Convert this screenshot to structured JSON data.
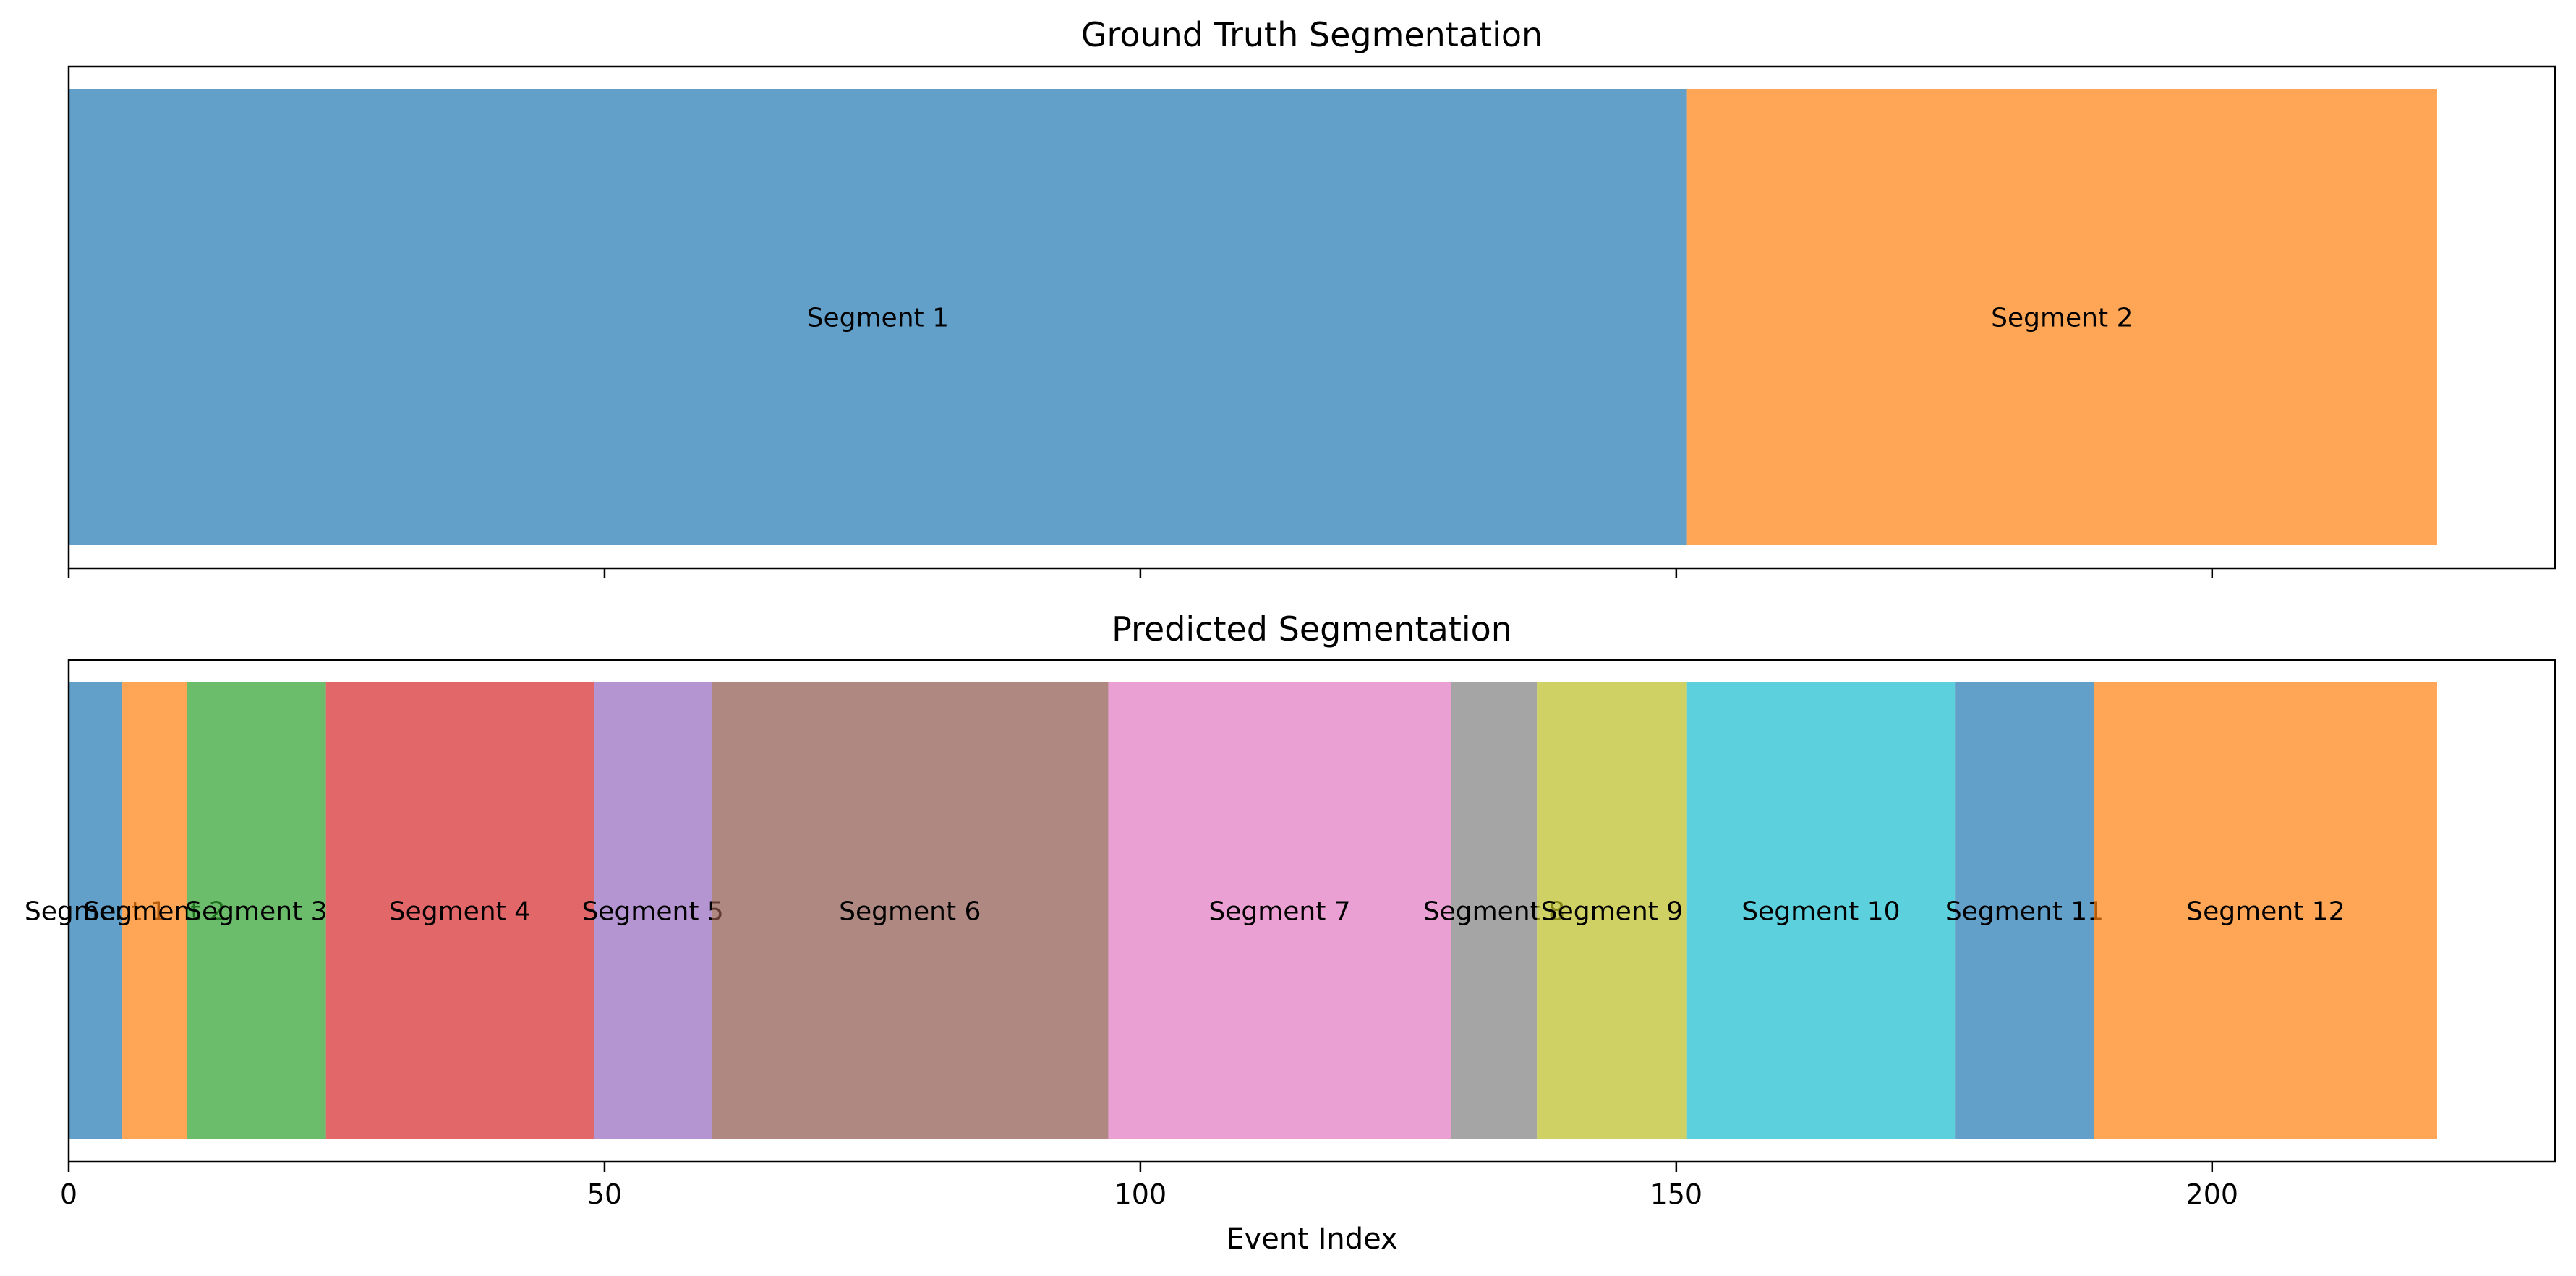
{
  "chart_data": [
    {
      "type": "bar",
      "orientation": "horizontal-segments",
      "title": "Ground Truth Segmentation",
      "xlabel": "",
      "xlim": [
        0,
        232
      ],
      "xticks": [
        0,
        50,
        100,
        150,
        200
      ],
      "show_tick_labels": false,
      "grid": false,
      "segments": [
        {
          "label": "Segment 1",
          "start": 0,
          "end": 151,
          "color": "#1f77b4"
        },
        {
          "label": "Segment 2",
          "start": 151,
          "end": 221,
          "color": "#ff7f0e"
        }
      ]
    },
    {
      "type": "bar",
      "orientation": "horizontal-segments",
      "title": "Predicted Segmentation",
      "xlabel": "Event Index",
      "xlim": [
        0,
        232
      ],
      "xticks": [
        0,
        50,
        100,
        150,
        200
      ],
      "show_tick_labels": true,
      "grid": false,
      "segments": [
        {
          "label": "Segment 1",
          "start": 0,
          "end": 5,
          "color": "#1f77b4"
        },
        {
          "label": "Segment 2",
          "start": 5,
          "end": 11,
          "color": "#ff7f0e"
        },
        {
          "label": "Segment 3",
          "start": 11,
          "end": 24,
          "color": "#2ca02c"
        },
        {
          "label": "Segment 4",
          "start": 24,
          "end": 49,
          "color": "#d62728"
        },
        {
          "label": "Segment 5",
          "start": 49,
          "end": 60,
          "color": "#9467bd"
        },
        {
          "label": "Segment 6",
          "start": 60,
          "end": 97,
          "color": "#8c564b"
        },
        {
          "label": "Segment 7",
          "start": 97,
          "end": 129,
          "color": "#e377c2"
        },
        {
          "label": "Segment 8",
          "start": 129,
          "end": 137,
          "color": "#7f7f7f"
        },
        {
          "label": "Segment 9",
          "start": 137,
          "end": 151,
          "color": "#bcbd22"
        },
        {
          "label": "Segment 10",
          "start": 151,
          "end": 176,
          "color": "#17becf"
        },
        {
          "label": "Segment 11",
          "start": 176,
          "end": 189,
          "color": "#1f77b4"
        },
        {
          "label": "Segment 12",
          "start": 189,
          "end": 221,
          "color": "#ff7f0e"
        }
      ]
    }
  ]
}
